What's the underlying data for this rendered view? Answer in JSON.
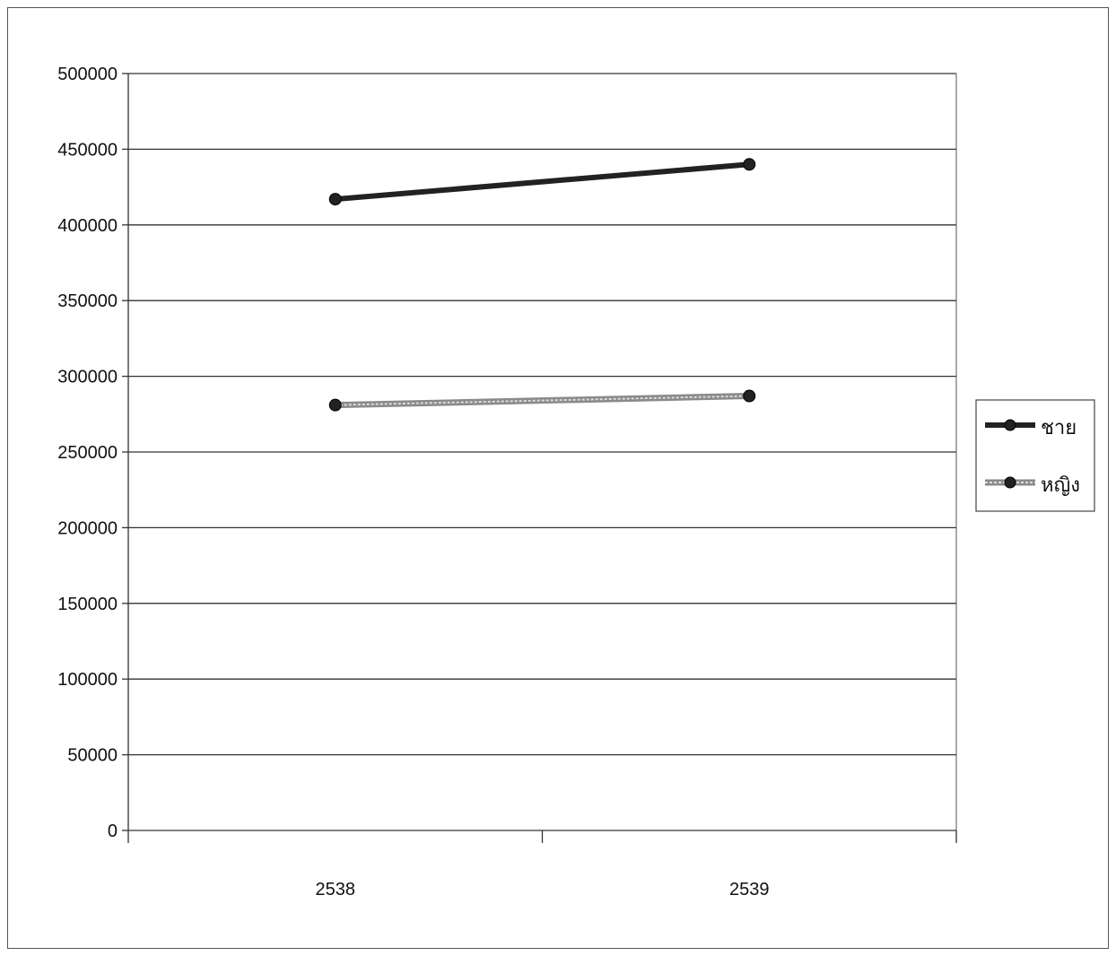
{
  "chart_data": {
    "type": "line",
    "title": "",
    "xlabel": "",
    "ylabel": "",
    "categories": [
      "2538",
      "2539"
    ],
    "ylim": [
      0,
      500000
    ],
    "yticks": [
      0,
      50000,
      100000,
      150000,
      200000,
      250000,
      300000,
      350000,
      400000,
      450000,
      500000
    ],
    "grid": "horizontal",
    "legend_position": "right",
    "series": [
      {
        "name": "ชาย",
        "values": [
          417000,
          440000
        ],
        "color": "#222222",
        "style": "solid"
      },
      {
        "name": "หญิง",
        "values": [
          281000,
          287000
        ],
        "color": "#8a8a8a",
        "style": "double"
      }
    ]
  }
}
